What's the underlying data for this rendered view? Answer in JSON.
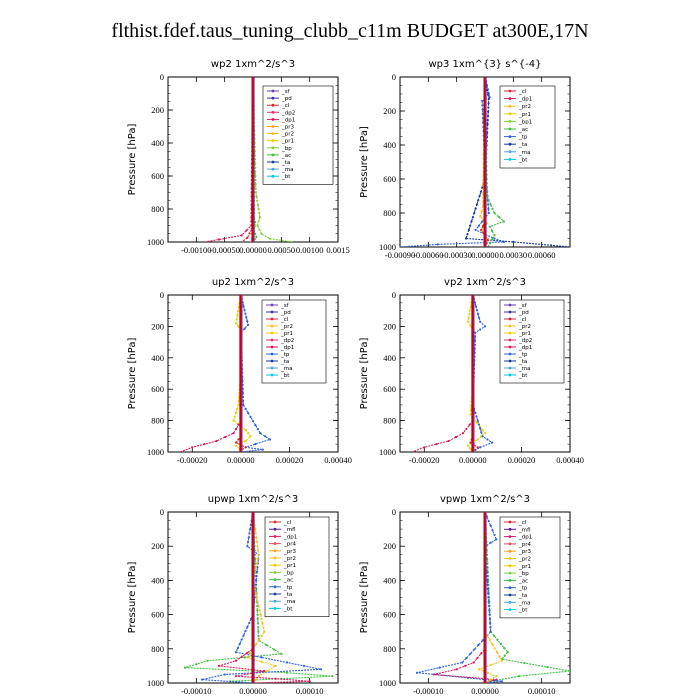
{
  "title": "flthist.fdef.taus_tuning_clubb_c11m  BUDGET at300E,17N",
  "colors": {
    "sf": "#6a3fb5",
    "pd": "#3a2ea0",
    "cl": "#d62839",
    "dp2": "#e23070",
    "dp1": "#d81b60",
    "pr3": "#ff9f1c",
    "pr2": "#f4c020",
    "pr1": "#e8d000",
    "pr4": "#e84a5f",
    "bp": "#7fd134",
    "bp1": "#7fd134",
    "ac": "#3fbf3f",
    "tp": "#2e64d8",
    "ta": "#1a3a9c",
    "ma": "#4aa3df",
    "bt": "#00c8e0",
    "mfl": "#5a1a9c"
  },
  "chart_data": [
    {
      "type": "line",
      "title": "wp2  1xm^2/s^3",
      "ylabel": "Pressure [hPa]",
      "xlim": [
        -0.0015,
        0.0015
      ],
      "ylim": [
        1000,
        0
      ],
      "xticks": [
        -0.001,
        -0.0005,
        0,
        0.0005,
        0.001,
        0.0015
      ],
      "xticklabels": [
        "-0.00100",
        "-0.00050",
        "0.00000",
        "0.00050",
        "0.00100",
        "0.0015"
      ],
      "yticks": [
        0,
        200,
        400,
        600,
        800,
        1000
      ],
      "legend": [
        "_sf",
        "_pd",
        "_cl",
        "_dp2",
        "_dp1",
        "_pr3",
        "_pr2",
        "_pr1",
        "_bp",
        "_ac",
        "_ta",
        "_ma",
        "_bt"
      ],
      "series": [
        {
          "name": "_bp",
          "x": [
            0,
            5e-05,
            0.0001,
            0.00012,
            8e-05,
            0.00015,
            0.0003,
            0.0007
          ],
          "y": [
            0,
            700,
            800,
            850,
            900,
            950,
            980,
            1000
          ]
        },
        {
          "name": "_ac",
          "x": [
            0,
            2e-05,
            4e-05,
            2e-05,
            6e-05,
            2e-05
          ],
          "y": [
            0,
            850,
            880,
            930,
            970,
            1000
          ]
        },
        {
          "name": "_dp1",
          "x": [
            0,
            -3e-05,
            -0.0002,
            -0.0006,
            -0.00085
          ],
          "y": [
            0,
            900,
            960,
            985,
            1000
          ]
        },
        {
          "name": "_cl",
          "x": [
            0,
            -2e-05,
            -0.0001,
            -0.0002
          ],
          "y": [
            0,
            920,
            975,
            1000
          ]
        },
        {
          "name": "_pr2",
          "x": [
            0,
            1e-05,
            -1e-05,
            2e-05,
            -2e-05,
            0
          ],
          "y": [
            0,
            820,
            860,
            900,
            950,
            1000
          ]
        },
        {
          "name": "_ma",
          "x": [
            0,
            1e-05,
            -2e-05,
            -5e-05
          ],
          "y": [
            0,
            940,
            980,
            1000
          ]
        },
        {
          "name": "_bt",
          "x": [
            0,
            0,
            0
          ],
          "y": [
            0,
            500,
            1000
          ]
        },
        {
          "name": "_sf",
          "x": [
            0,
            0,
            0
          ],
          "y": [
            0,
            500,
            1000
          ]
        }
      ]
    },
    {
      "type": "line",
      "title": "wp3  1xm^{3} s^{-4}",
      "ylabel": "Pressure [hPa]",
      "xlim": [
        -0.0009,
        0.0009
      ],
      "ylim": [
        1000,
        0
      ],
      "xticks": [
        -0.0009,
        -0.0006,
        -0.0003,
        0,
        0.0003,
        0.0006
      ],
      "xticklabels": [
        "-0.00090",
        "-0.00060",
        "-0.00030",
        "0.00000",
        "0.00030",
        "0.00060"
      ],
      "yticks": [
        0,
        200,
        400,
        600,
        800,
        1000
      ],
      "legend": [
        "_cl",
        "_dp1",
        "_pr2",
        "_pr1",
        "_bp1",
        "_ac",
        "_tp",
        "_ta",
        "_ma",
        "_bt"
      ],
      "series": [
        {
          "name": "_tp",
          "x": [
            0,
            5e-05,
            -3e-05,
            0,
            4e-05,
            -0.0001,
            0.0001,
            0.0002,
            -0.0005,
            -0.0009
          ],
          "y": [
            0,
            120,
            140,
            500,
            800,
            900,
            950,
            970,
            985,
            1000
          ]
        },
        {
          "name": "_ta",
          "x": [
            0,
            4e-05,
            0,
            -0.0002,
            0.0003,
            0.0007,
            0.0009
          ],
          "y": [
            0,
            130,
            600,
            950,
            970,
            990,
            1000
          ]
        },
        {
          "name": "_ac",
          "x": [
            0,
            2e-05,
            0.0001,
            0.0002,
            5e-05,
            0.0001,
            3e-05
          ],
          "y": [
            0,
            700,
            800,
            850,
            880,
            930,
            1000
          ]
        },
        {
          "name": "_pr2",
          "x": [
            0,
            -2e-05,
            -5e-05,
            2e-05,
            -4e-05,
            3e-05,
            0
          ],
          "y": [
            0,
            760,
            820,
            860,
            900,
            950,
            1000
          ]
        },
        {
          "name": "_cl",
          "x": [
            0,
            0,
            -4e-05,
            3e-05,
            0
          ],
          "y": [
            0,
            850,
            900,
            960,
            1000
          ]
        },
        {
          "name": "_bt",
          "x": [
            0,
            0,
            0
          ],
          "y": [
            0,
            500,
            1000
          ]
        }
      ]
    },
    {
      "type": "line",
      "title": "up2  1xm^2/s^3",
      "ylabel": "Pressure [hPa]",
      "xlim": [
        -0.0003,
        0.0004
      ],
      "ylim": [
        1000,
        0
      ],
      "xticks": [
        -0.0002,
        0,
        0.0002,
        0.0004
      ],
      "xticklabels": [
        "-0.00020",
        "0.00000",
        "0.00020",
        "0.00040"
      ],
      "yticks": [
        0,
        200,
        400,
        600,
        800,
        1000
      ],
      "legend": [
        "_sf",
        "_pd",
        "_cl",
        "_pr2",
        "_pr1",
        "_dp2",
        "_dp1",
        "_tp",
        "_ta",
        "_ma",
        "_bt"
      ],
      "series": [
        {
          "name": "_pr1",
          "x": [
            0,
            -2e-05,
            0,
            0,
            -1e-05,
            -3e-05,
            2e-05,
            4e-05,
            2e-05,
            -2e-05,
            1e-05
          ],
          "y": [
            0,
            180,
            220,
            500,
            700,
            800,
            860,
            900,
            930,
            960,
            1000
          ]
        },
        {
          "name": "_dp1",
          "x": [
            0,
            0,
            -3e-05,
            -0.0001,
            -0.0002,
            -0.00025
          ],
          "y": [
            0,
            800,
            880,
            930,
            970,
            1000
          ]
        },
        {
          "name": "_tp",
          "x": [
            0,
            3e-05,
            0,
            1e-05,
            8e-05,
            0.00012,
            6e-05,
            2e-05,
            9e-05,
            0
          ],
          "y": [
            0,
            190,
            240,
            700,
            880,
            920,
            950,
            970,
            985,
            1000
          ]
        },
        {
          "name": "_cl",
          "x": [
            0,
            0,
            -2e-05,
            2e-05,
            -1e-05
          ],
          "y": [
            0,
            900,
            940,
            970,
            1000
          ]
        },
        {
          "name": "_bt",
          "x": [
            0,
            0,
            0
          ],
          "y": [
            0,
            500,
            1000
          ]
        }
      ]
    },
    {
      "type": "line",
      "title": "vp2  1xm^2/s^3",
      "ylabel": "Pressure [hPa]",
      "xlim": [
        -0.0003,
        0.0004
      ],
      "ylim": [
        1000,
        0
      ],
      "xticks": [
        -0.0002,
        0,
        0.0002,
        0.0004
      ],
      "xticklabels": [
        "-0.00020",
        "0.00000",
        "0.00020",
        "0.00040"
      ],
      "yticks": [
        0,
        200,
        400,
        600,
        800,
        1000
      ],
      "legend": [
        "_sf",
        "_pd",
        "_cl",
        "_pr2",
        "_pr1",
        "_dp2",
        "_dp1",
        "_tp",
        "_ta",
        "_ma",
        "_bt"
      ],
      "series": [
        {
          "name": "_pr1",
          "x": [
            0,
            -2e-05,
            0,
            0,
            -1e-05,
            3e-05,
            5e-05,
            2e-05,
            -2e-05,
            0
          ],
          "y": [
            0,
            170,
            220,
            600,
            760,
            840,
            880,
            920,
            960,
            1000
          ]
        },
        {
          "name": "_dp1",
          "x": [
            0,
            0,
            -4e-05,
            -0.0001,
            -0.0002,
            -0.00025
          ],
          "y": [
            0,
            800,
            880,
            930,
            970,
            1000
          ]
        },
        {
          "name": "_tp",
          "x": [
            0,
            3e-05,
            5e-05,
            1e-05,
            0,
            4e-05,
            8e-05,
            3e-05,
            0
          ],
          "y": [
            0,
            170,
            200,
            240,
            700,
            900,
            940,
            970,
            1000
          ]
        },
        {
          "name": "_cl",
          "x": [
            0,
            0,
            -1e-05,
            2e-05,
            0
          ],
          "y": [
            0,
            900,
            940,
            970,
            1000
          ]
        },
        {
          "name": "_bt",
          "x": [
            0,
            0,
            0
          ],
          "y": [
            0,
            500,
            1000
          ]
        }
      ]
    },
    {
      "type": "line",
      "title": "upwp  1xm^2/s^3",
      "ylabel": "Pressure [hPa]",
      "xlim": [
        -0.00015,
        0.00015
      ],
      "ylim": [
        1000,
        0
      ],
      "xticks": [
        -0.0001,
        0,
        0.0001
      ],
      "xticklabels": [
        "-0.00010",
        "0.00000",
        "0.00010"
      ],
      "yticks": [
        0,
        200,
        400,
        600,
        800,
        1000
      ],
      "legend": [
        "_cl",
        "_mfl",
        "_dp1",
        "_pr4",
        "_pr3",
        "_pr2",
        "_pr1",
        "_bp",
        "_ac",
        "_tp",
        "_ta",
        "_ma",
        "_bt"
      ],
      "series": [
        {
          "name": "_ac",
          "x": [
            0,
            1e-05,
            5e-05,
            -8e-05,
            -0.00012,
            6e-05,
            0.00014,
            5e-05,
            -4e-05,
            0
          ],
          "y": [
            0,
            750,
            830,
            870,
            910,
            940,
            960,
            975,
            990,
            1000
          ]
        },
        {
          "name": "_tp",
          "x": [
            0,
            -1e-05,
            1e-05,
            0,
            -3e-05,
            6e-05,
            0.00012,
            -5e-05,
            -9e-05,
            0
          ],
          "y": [
            0,
            200,
            250,
            600,
            820,
            880,
            920,
            950,
            980,
            1000
          ]
        },
        {
          "name": "_pr2",
          "x": [
            0,
            1e-05,
            0,
            2e-05,
            -1e-05,
            4e-05,
            1e-05,
            0
          ],
          "y": [
            0,
            250,
            400,
            700,
            850,
            900,
            960,
            1000
          ]
        },
        {
          "name": "_dp1",
          "x": [
            0,
            0,
            -3e-05,
            -6e-05,
            2e-05,
            -3e-05,
            4e-05,
            0.0001,
            0
          ],
          "y": [
            0,
            800,
            870,
            900,
            930,
            960,
            975,
            990,
            1000
          ]
        },
        {
          "name": "_bt",
          "x": [
            0,
            0,
            0
          ],
          "y": [
            0,
            500,
            1000
          ]
        }
      ]
    },
    {
      "type": "line",
      "title": "vpwp  1xm^2/s^3",
      "ylabel": "Pressure [hPa]",
      "xlim": [
        -0.00015,
        0.00015
      ],
      "ylim": [
        1000,
        0
      ],
      "xticks": [
        -0.0001,
        0,
        0.0001
      ],
      "xticklabels": [
        "-0.00010",
        "0.00000",
        "0.00010"
      ],
      "yticks": [
        0,
        200,
        400,
        600,
        800,
        1000
      ],
      "legend": [
        "_cl",
        "_mfl",
        "_dp1",
        "_pr4",
        "_pr3",
        "_pr2",
        "_pr1",
        "_bp",
        "_ac",
        "_tp",
        "_ta",
        "_ma",
        "_bt"
      ],
      "series": [
        {
          "name": "_ac",
          "x": [
            0,
            1e-05,
            4e-05,
            3e-05,
            0.00015,
            6e-05,
            2e-05,
            0
          ],
          "y": [
            0,
            700,
            820,
            860,
            930,
            960,
            985,
            1000
          ]
        },
        {
          "name": "_tp",
          "x": [
            0,
            2e-05,
            0,
            1e-05,
            -4e-05,
            -0.00012,
            -3e-05,
            3e-05,
            0
          ],
          "y": [
            0,
            160,
            200,
            700,
            880,
            940,
            970,
            990,
            1000
          ]
        },
        {
          "name": "_dp1",
          "x": [
            0,
            0,
            -2e-05,
            -5e-05,
            -9e-05,
            2e-05,
            0
          ],
          "y": [
            0,
            800,
            880,
            920,
            950,
            980,
            1000
          ]
        },
        {
          "name": "_pr2",
          "x": [
            0,
            0,
            3e-05,
            -1e-05,
            2e-05,
            0
          ],
          "y": [
            0,
            700,
            870,
            920,
            960,
            1000
          ]
        },
        {
          "name": "_bt",
          "x": [
            0,
            0,
            0
          ],
          "y": [
            0,
            500,
            1000
          ]
        }
      ]
    }
  ]
}
